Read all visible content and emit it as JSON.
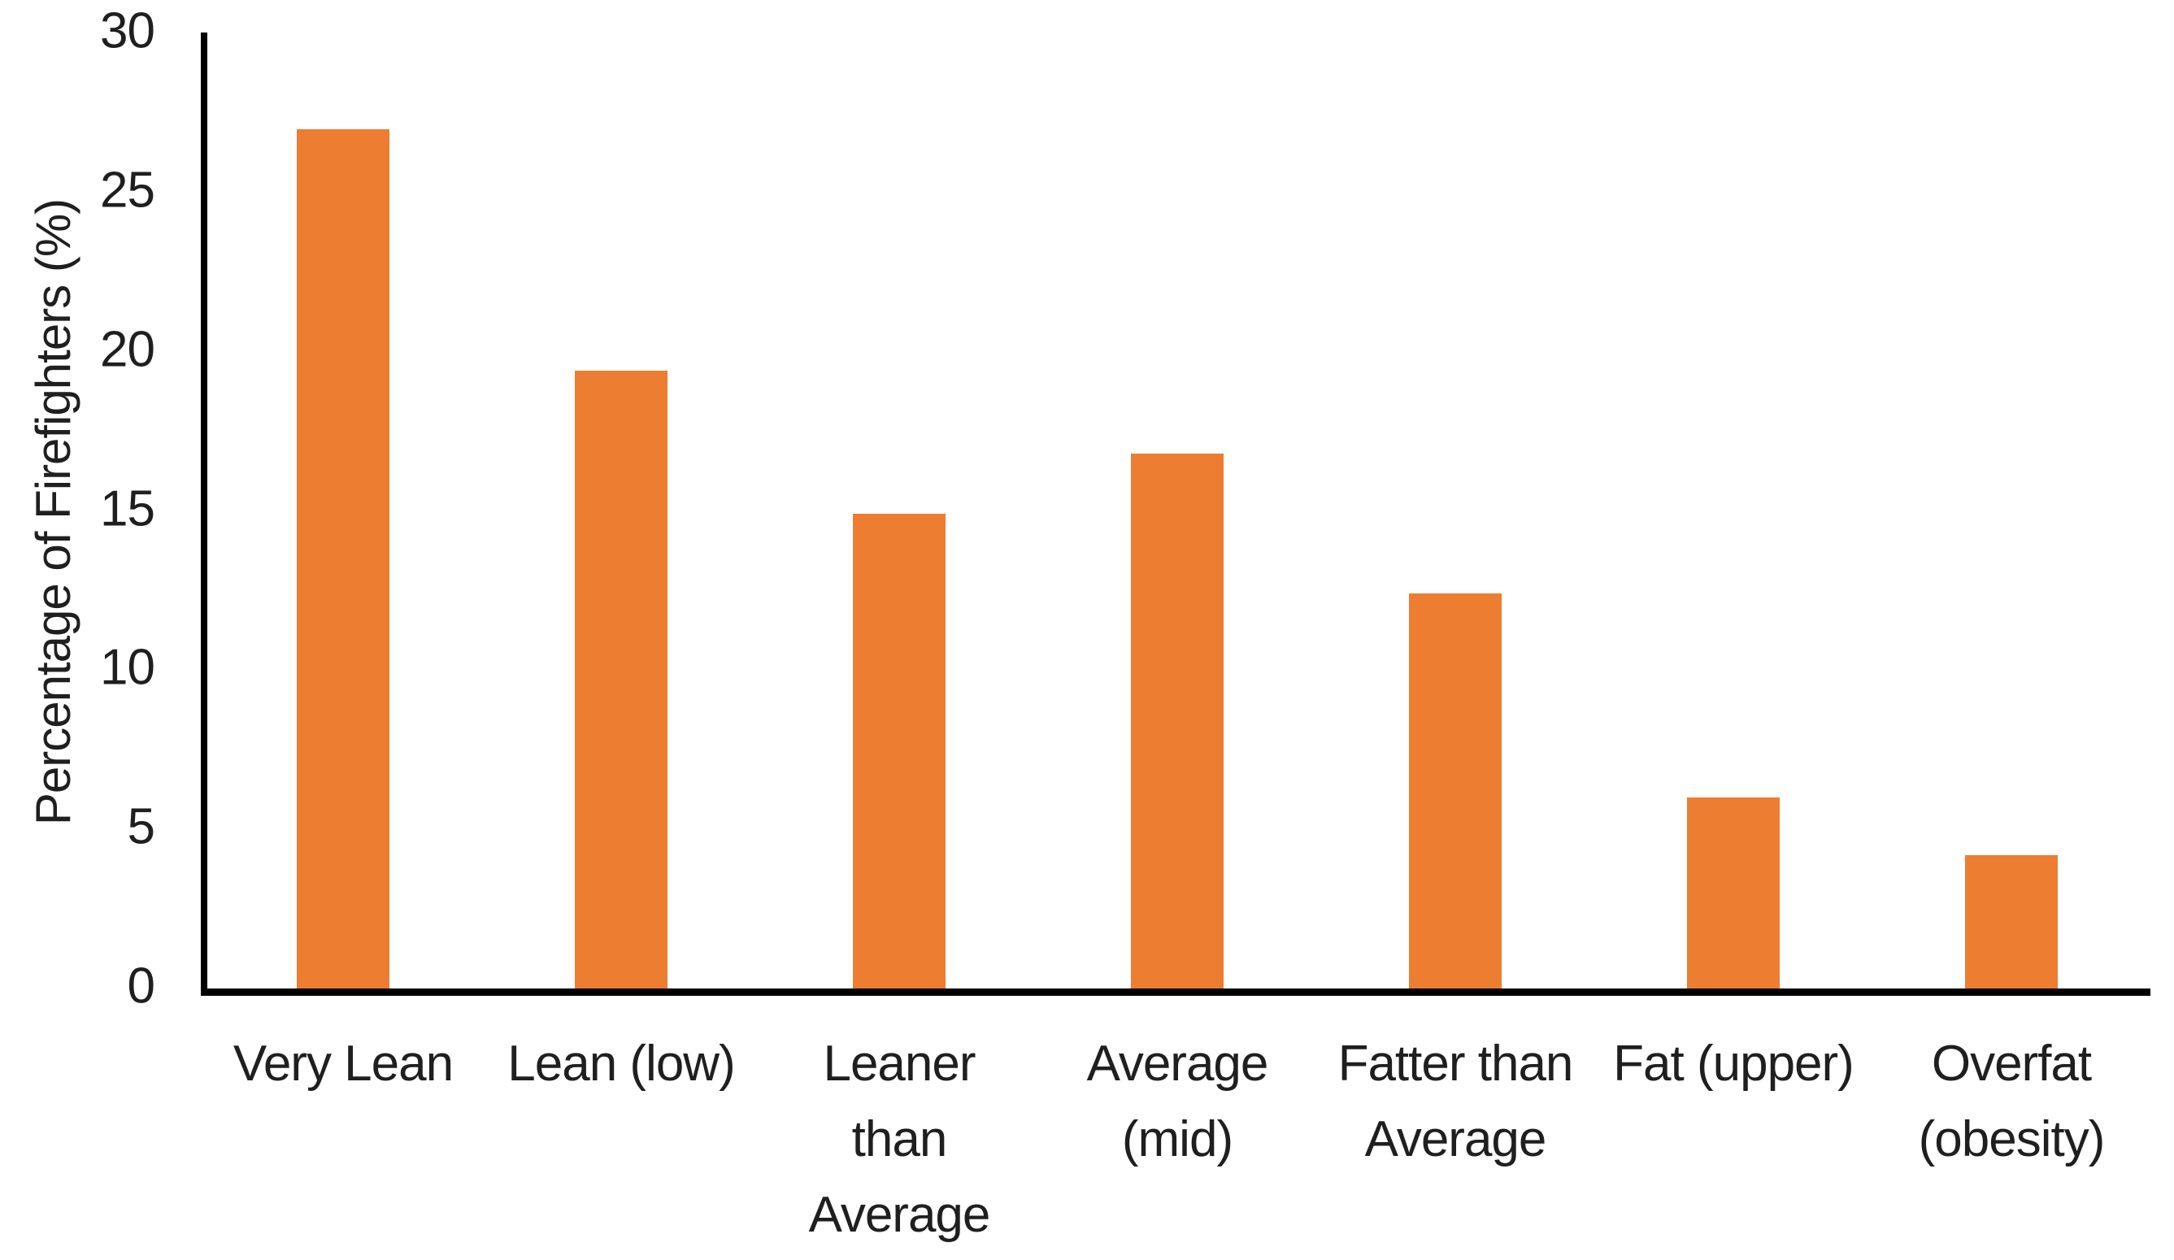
{
  "chart_data": {
    "type": "bar",
    "title": "",
    "xlabel": "",
    "ylabel": "Percentage of Firefighters (%)",
    "categories": [
      "Very Lean",
      "Lean (low)",
      "Leaner\nthan\nAverage",
      "Average\n(mid)",
      "Fatter than\nAverage",
      "Fat (upper)",
      "Overfat\n(obesity)"
    ],
    "values": [
      27,
      19.4,
      14.9,
      16.8,
      12.4,
      6,
      4.2
    ],
    "ylim": [
      0,
      30
    ],
    "yticks": [
      0,
      5,
      10,
      15,
      20,
      25,
      30
    ],
    "grid": false,
    "legend": "none",
    "bar_color": "#ED7D31",
    "axis_color": "#000000",
    "text_color": "#1f1f1f"
  }
}
